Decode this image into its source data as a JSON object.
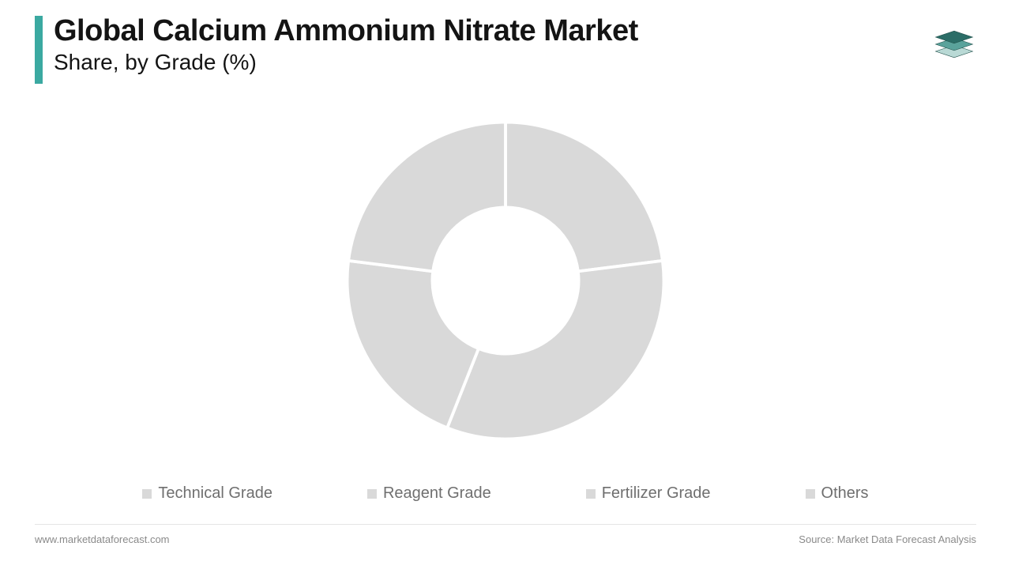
{
  "header": {
    "title": "Global Calcium Ammonium Nitrate Market",
    "subtitle": "Share, by Grade (%)",
    "accent_color": "#3ba9a1",
    "title_color": "#141414",
    "title_fontsize": 38,
    "subtitle_fontsize": 28
  },
  "logo": {
    "name": "stacked-layers-icon",
    "top_fill": "#2b6d67",
    "mid_fill": "#5aa29b",
    "bot_fill": "#b9d9d5",
    "stroke": "#1f4e49"
  },
  "chart": {
    "type": "donut",
    "outer_radius": 210,
    "inner_radius": 97,
    "slice_color": "#d9d9d9",
    "gap_color": "#ffffff",
    "gap_width": 4,
    "background_color": "#ffffff",
    "slices": [
      {
        "label": "Technical Grade",
        "value": 23,
        "start_angle": 0
      },
      {
        "label": "Reagent Grade",
        "value": 33,
        "start_angle": 82.8
      },
      {
        "label": "Fertilizer Grade",
        "value": 21,
        "start_angle": 201.6
      },
      {
        "label": "Others",
        "value": 23,
        "start_angle": 277.2
      }
    ]
  },
  "legend": {
    "marker_color": "#d9d9d9",
    "text_color": "#6f6f6f",
    "fontsize": 20,
    "items": [
      "Technical Grade",
      "Reagent Grade",
      "Fertilizer Grade",
      "Others"
    ]
  },
  "footer": {
    "left": "www.marketdataforecast.com",
    "right": "Source: Market Data Forecast Analysis",
    "text_color": "#8a8a8a",
    "fontsize": 13,
    "divider_color": "#e5e5e5"
  }
}
